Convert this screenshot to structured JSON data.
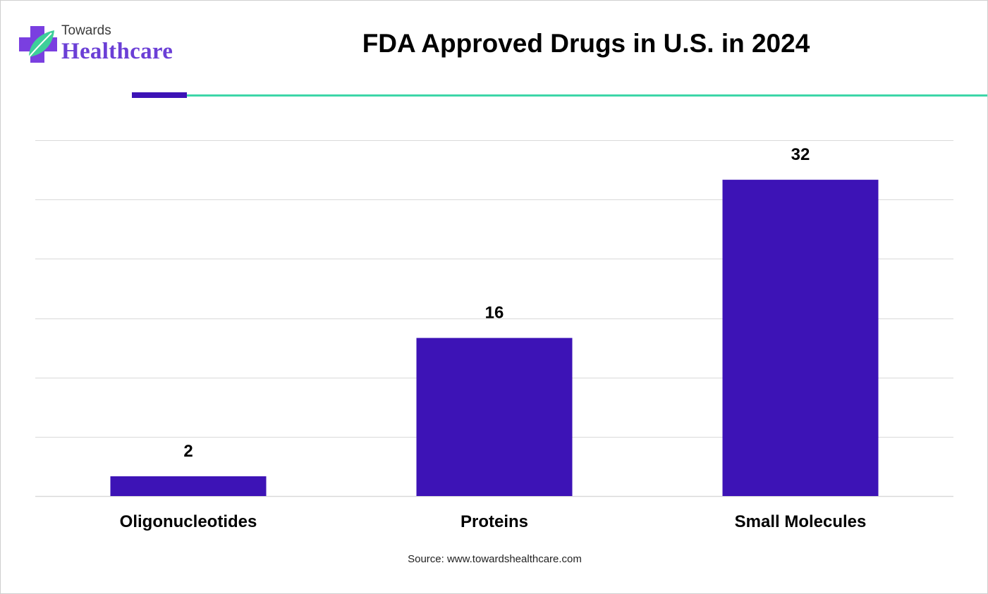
{
  "logo": {
    "line1": "Towards",
    "line2": "Healthcare"
  },
  "header": {
    "title": "FDA Approved Drugs in U.S. in 2024"
  },
  "footer": {
    "source": "Source: www.towardshealthcare.com"
  },
  "colors": {
    "bar": "#3d13b6",
    "accent_line": "#3dd6a8",
    "grid": "#d9d9d9"
  },
  "chart_data": {
    "type": "bar",
    "title": "FDA Approved Drugs in U.S. in 2024",
    "categories": [
      "Oligonucleotides",
      "Proteins",
      "Small Molecules"
    ],
    "values": [
      2,
      16,
      32
    ],
    "data_labels": [
      "2",
      "16",
      "32"
    ],
    "ylim": [
      0,
      36
    ],
    "grid": true,
    "grid_step": 6,
    "xlabel": "",
    "ylabel": ""
  }
}
